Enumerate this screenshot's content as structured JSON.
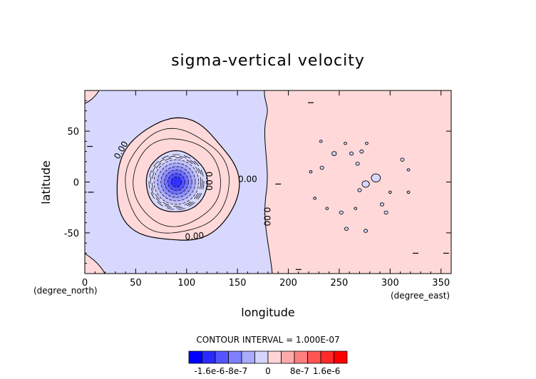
{
  "chart_data": {
    "type": "contour",
    "title": "sigma-vertical velocity",
    "xlabel": "longitude",
    "ylabel": "latitude",
    "x_units": "(degree_east)",
    "y_units": "(degree_north)",
    "xlim": [
      0,
      360
    ],
    "ylim": [
      -90,
      90
    ],
    "x_ticks": [
      0,
      50,
      100,
      150,
      200,
      250,
      300,
      350
    ],
    "y_ticks": [
      -50,
      0,
      50
    ],
    "contour_interval_text": "CONTOUR INTERVAL = 1.000E-07",
    "contour_labels": [
      "0.00",
      "0.00",
      "0.00",
      "0.00",
      "0.00"
    ],
    "center": {
      "lon": 90,
      "lat": 0
    },
    "ring_radii_deg": [
      60,
      51,
      43,
      30
    ],
    "colorbar": {
      "labels": [
        "-1.6e-6",
        "-8e-7",
        "0",
        "8e-7",
        "1.6e-6"
      ],
      "colors": [
        "#0000ff",
        "#2a2aff",
        "#5555ff",
        "#7f7fff",
        "#aaaaff",
        "#d4d4ff",
        "#ffd4d4",
        "#ffaaaa",
        "#ff7f7f",
        "#ff5555",
        "#ff2a2a",
        "#ff0000"
      ]
    },
    "colors": {
      "negative_fill": "#d8d8ff",
      "positive_fill": "#ffd9d9",
      "line": "#000000"
    }
  }
}
